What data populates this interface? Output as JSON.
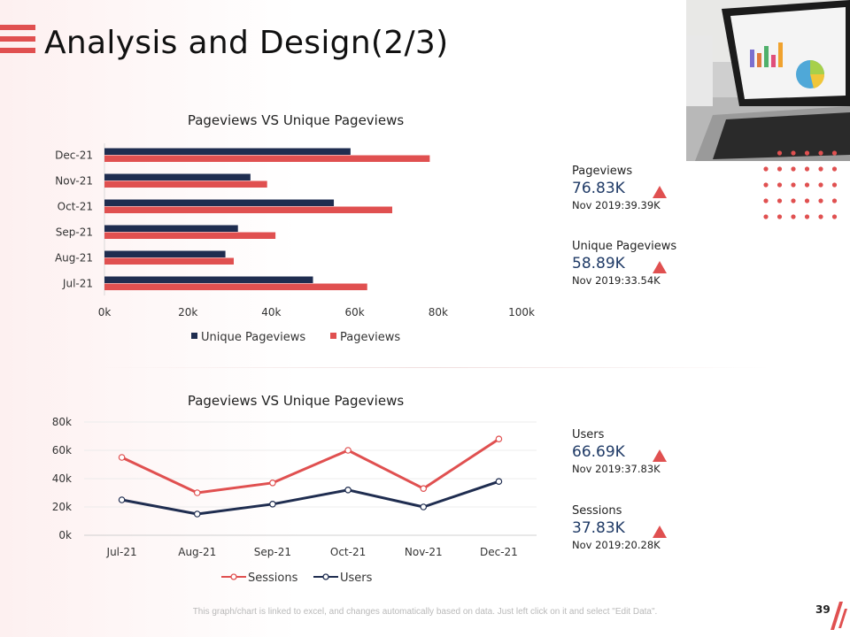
{
  "page": {
    "title": "Analysis and Design(2/3)",
    "footnote": "This graph/chart is linked to excel, and changes automatically based on data. Just left click on it and select \"Edit Data\".",
    "page_number": "39"
  },
  "colors": {
    "accent": "#e05050",
    "navy": "#1f2d50",
    "value_text": "#1f3a66"
  },
  "kpis": [
    {
      "label": "Pageviews",
      "value": "76.83K",
      "compare": "Nov 2019:39.39K",
      "trend": "up"
    },
    {
      "label": "Unique Pageviews",
      "value": "58.89K",
      "compare": "Nov 2019:33.54K",
      "trend": "up"
    },
    {
      "label": "Users",
      "value": "66.69K",
      "compare": "Nov 2019:37.83K",
      "trend": "up"
    },
    {
      "label": "Sessions",
      "value": "37.83K",
      "compare": "Nov 2019:20.28K",
      "trend": "up"
    }
  ],
  "chart_data": [
    {
      "type": "bar",
      "orientation": "horizontal",
      "title": "Pageviews VS Unique Pageviews",
      "categories": [
        "Jul-21",
        "Aug-21",
        "Sep-21",
        "Oct-21",
        "Nov-21",
        "Dec-21"
      ],
      "series": [
        {
          "name": "Unique Pageviews",
          "color": "#1f2d50",
          "values": [
            50000,
            29000,
            32000,
            55000,
            35000,
            59000
          ]
        },
        {
          "name": "Pageviews",
          "color": "#e05050",
          "values": [
            63000,
            31000,
            41000,
            69000,
            39000,
            78000
          ]
        }
      ],
      "xlim": [
        0,
        100000
      ],
      "tick_labels": [
        "0k",
        "20k",
        "40k",
        "60k",
        "80k",
        "100k"
      ],
      "legend_position": "bottom"
    },
    {
      "type": "line",
      "title": "Pageviews VS Unique Pageviews",
      "categories": [
        "Jul-21",
        "Aug-21",
        "Sep-21",
        "Oct-21",
        "Nov-21",
        "Dec-21"
      ],
      "series": [
        {
          "name": "Sessions",
          "color": "#e05050",
          "values": [
            55000,
            30000,
            37000,
            60000,
            33000,
            68000
          ]
        },
        {
          "name": "Users",
          "color": "#1f2d50",
          "values": [
            25000,
            15000,
            22000,
            32000,
            20000,
            38000
          ]
        }
      ],
      "ylim": [
        0,
        80000
      ],
      "tick_labels": [
        "0k",
        "20k",
        "40k",
        "60k",
        "80k"
      ],
      "grid": true,
      "legend_position": "bottom"
    }
  ]
}
